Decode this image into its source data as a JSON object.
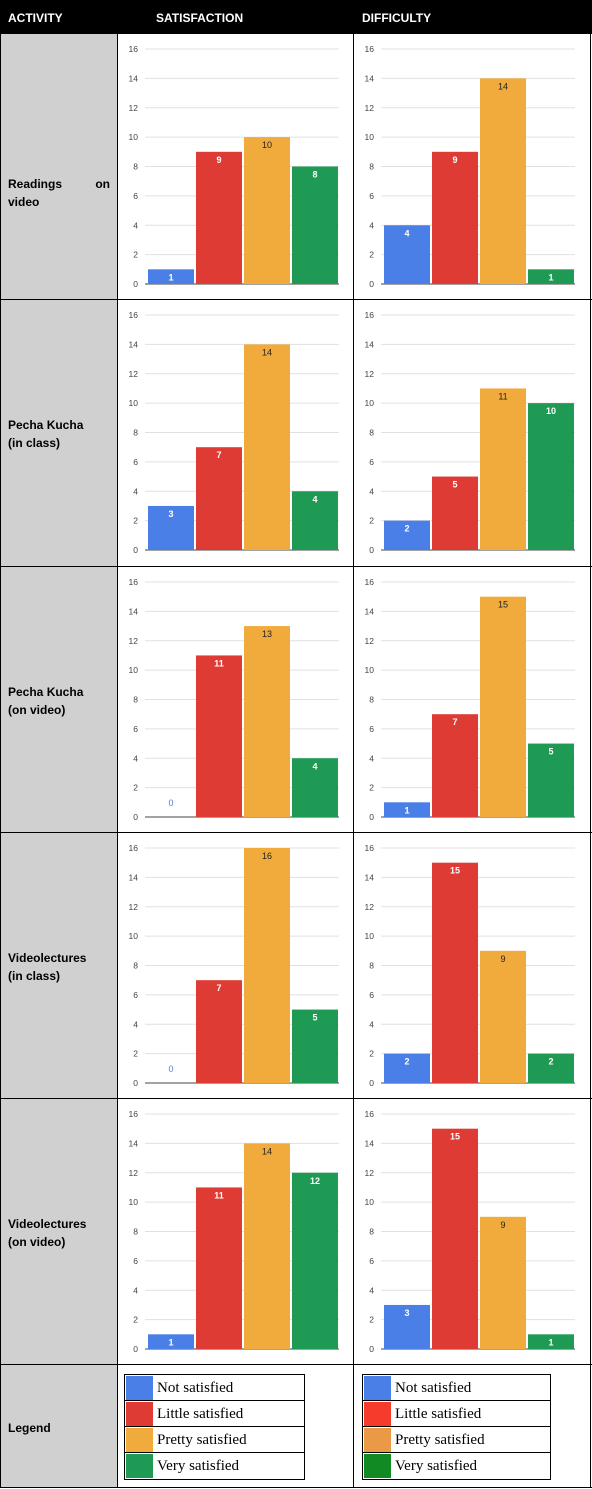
{
  "header": {
    "activity": "ACTIVITY",
    "satisfaction": "SATISFACTION",
    "difficulty": "DIFFICULTY"
  },
  "rows": [
    {
      "label": "Readings on video"
    },
    {
      "label": "Pecha Kucha\n(in class)"
    },
    {
      "label": "Pecha Kucha\n(on video)"
    },
    {
      "label": "Videolectures\n(in class)"
    },
    {
      "label": "Videolectures\n(on video)"
    }
  ],
  "legend_label": "Legend",
  "legend_satisfaction": [
    {
      "label": "Not satisfied",
      "color": "#4a7fe8"
    },
    {
      "label": "Little satisfied",
      "color": "#de3b34"
    },
    {
      "label": "Pretty satisfied",
      "color": "#f1ab3c"
    },
    {
      "label": "Very satisfied",
      "color": "#1e9a55"
    }
  ],
  "legend_difficulty": [
    {
      "label": "Not satisfied",
      "color": "#4a7fe8"
    },
    {
      "label": "Little satisfied",
      "color": "#f53b2c"
    },
    {
      "label": "Pretty satisfied",
      "color": "#ea9a46"
    },
    {
      "label": "Very satisfied",
      "color": "#118a24"
    }
  ],
  "colors": {
    "bars": [
      "#4a7fe8",
      "#de3b34",
      "#f1ab3c",
      "#1e9a55"
    ],
    "header_bg": "#000000",
    "activity_bg": "#d0d0d0",
    "grid": "#e0e0e0"
  },
  "chart_data": [
    {
      "type": "bar",
      "activity": "Readings on video",
      "measure": "SATISFACTION",
      "values": [
        1,
        9,
        10,
        8
      ],
      "yticks": [
        "0",
        "2",
        "4",
        "6",
        "8",
        "10",
        "12",
        "14",
        "16"
      ],
      "ylim": [
        0,
        16
      ]
    },
    {
      "type": "bar",
      "activity": "Readings on video",
      "measure": "DIFFICULTY",
      "values": [
        4,
        9,
        14,
        1
      ],
      "yticks": [
        "0",
        "2",
        "4",
        "6",
        "8",
        "10",
        "12",
        "14",
        "16"
      ],
      "ylim": [
        0,
        16
      ]
    },
    {
      "type": "bar",
      "activity": "Pecha Kucha (in class)",
      "measure": "SATISFACTION",
      "values": [
        3,
        7,
        14,
        4
      ],
      "yticks": [
        "0",
        "2",
        "4",
        "6",
        "8",
        "10",
        "12",
        "14",
        "16"
      ],
      "ylim": [
        0,
        16
      ]
    },
    {
      "type": "bar",
      "activity": "Pecha Kucha (in class)",
      "measure": "DIFFICULTY",
      "values": [
        2,
        5,
        11,
        10
      ],
      "yticks": [
        "0",
        "2",
        "4",
        "6",
        "8",
        "10",
        "12",
        "14",
        "16"
      ],
      "ylim": [
        0,
        16
      ]
    },
    {
      "type": "bar",
      "activity": "Pecha Kucha (on video)",
      "measure": "SATISFACTION",
      "values": [
        0,
        11,
        13,
        4
      ],
      "yticks": [
        "0",
        "2",
        "4",
        "6",
        "8",
        "10",
        "12",
        "14",
        "16"
      ],
      "ylim": [
        0,
        16
      ]
    },
    {
      "type": "bar",
      "activity": "Pecha Kucha (on video)",
      "measure": "DIFFICULTY",
      "values": [
        1,
        7,
        15,
        5
      ],
      "yticks": [
        "0",
        "2",
        "4",
        "6",
        "8",
        "10",
        "12",
        "14",
        "16"
      ],
      "ylim": [
        0,
        16
      ]
    },
    {
      "type": "bar",
      "activity": "Videolectures (in class)",
      "measure": "SATISFACTION",
      "values": [
        0,
        7,
        16,
        5
      ],
      "yticks": [
        "0",
        "2",
        "4",
        "6",
        "8",
        "10",
        "12",
        "14",
        "16"
      ],
      "ylim": [
        0,
        16
      ]
    },
    {
      "type": "bar",
      "activity": "Videolectures (in class)",
      "measure": "DIFFICULTY",
      "values": [
        2,
        15,
        9,
        2
      ],
      "yticks": [
        "0",
        "2",
        "4",
        "6",
        "8",
        "10",
        "12",
        "14",
        "16"
      ],
      "ylim": [
        0,
        16
      ]
    },
    {
      "type": "bar",
      "activity": "Videolectures (on video)",
      "measure": "SATISFACTION",
      "values": [
        1,
        11,
        14,
        12
      ],
      "yticks": [
        "0",
        "2",
        "4",
        "6",
        "8",
        "10",
        "12",
        "14",
        "16"
      ],
      "ylim": [
        0,
        16
      ]
    },
    {
      "type": "bar",
      "activity": "Videolectures (on video)",
      "measure": "DIFFICULTY",
      "values": [
        3,
        15,
        9,
        1
      ],
      "yticks": [
        "0",
        "2",
        "4",
        "6",
        "8",
        "10",
        "12",
        "14",
        "16"
      ],
      "ylim": [
        0,
        16
      ]
    }
  ]
}
